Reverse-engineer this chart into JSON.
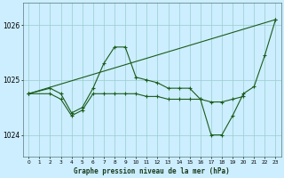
{
  "title": "Graphe pression niveau de la mer (hPa)",
  "background_color": "#cceeff",
  "grid_color": "#99cccc",
  "line_color": "#1a5c1a",
  "xlim": [
    -0.5,
    23.5
  ],
  "ylim": [
    1023.6,
    1026.4
  ],
  "yticks": [
    1024,
    1025,
    1026
  ],
  "xtick_labels": [
    "0",
    "1",
    "2",
    "3",
    "4",
    "5",
    "6",
    "7",
    "8",
    "9",
    "10",
    "11",
    "12",
    "13",
    "14",
    "15",
    "16",
    "17",
    "18",
    "19",
    "20",
    "21",
    "22",
    "23"
  ],
  "series_trend": {
    "x": [
      0,
      23
    ],
    "y": [
      1024.75,
      1026.1
    ]
  },
  "series_main": {
    "x": [
      0,
      2,
      3,
      4,
      5,
      6,
      7,
      8,
      9,
      10,
      11,
      12,
      13,
      14,
      15,
      16,
      17,
      18,
      19,
      20,
      21,
      22,
      23
    ],
    "y": [
      1024.75,
      1024.85,
      1024.75,
      1024.4,
      1024.5,
      1024.85,
      1025.3,
      1025.6,
      1025.6,
      1025.05,
      1025.0,
      1024.95,
      1024.85,
      1024.85,
      1024.85,
      1024.65,
      1024.0,
      1024.0,
      1024.35,
      1024.75,
      1024.88,
      1025.45,
      1026.1
    ]
  },
  "series_flat": {
    "x": [
      0,
      2,
      3,
      4,
      5,
      6,
      7,
      8,
      9,
      10,
      11,
      12,
      13,
      14,
      15,
      16,
      17,
      18,
      19,
      20
    ],
    "y": [
      1024.75,
      1024.75,
      1024.65,
      1024.35,
      1024.45,
      1024.75,
      1024.75,
      1024.75,
      1024.75,
      1024.75,
      1024.7,
      1024.7,
      1024.65,
      1024.65,
      1024.65,
      1024.65,
      1024.6,
      1024.6,
      1024.65,
      1024.7
    ]
  },
  "series_spike": {
    "x": [
      0,
      2,
      3,
      4,
      5,
      6,
      7,
      8,
      9,
      10,
      11,
      12,
      13,
      14,
      15
    ],
    "y": [
      1024.75,
      1024.85,
      1024.75,
      1024.35,
      1024.45,
      1024.82,
      1025.25,
      1025.58,
      1025.58,
      1025.05,
      1025.0,
      1024.95,
      1024.85,
      1024.85,
      1024.85
    ]
  }
}
